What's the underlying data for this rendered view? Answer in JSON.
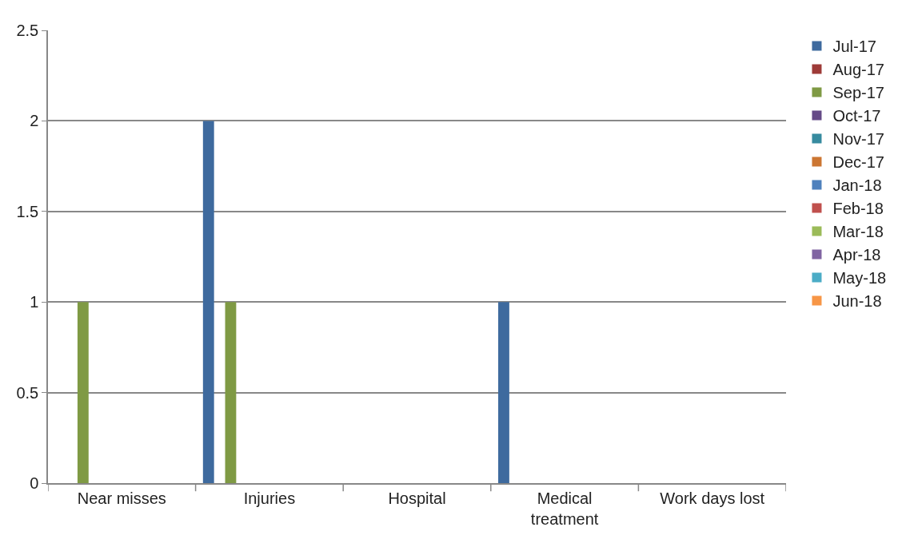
{
  "chart_data": {
    "type": "bar",
    "categories": [
      "Near misses",
      "Injuries",
      "Hospital",
      "Medical treatment",
      "Work days lost"
    ],
    "series": [
      {
        "name": "Jul-17",
        "color": "#3e6a9e",
        "values": [
          0,
          2,
          0,
          1,
          0
        ]
      },
      {
        "name": "Aug-17",
        "color": "#9e3b38",
        "values": [
          0,
          0,
          0,
          0,
          0
        ]
      },
      {
        "name": "Sep-17",
        "color": "#7f9a44",
        "values": [
          1,
          1,
          0,
          0,
          0
        ]
      },
      {
        "name": "Oct-17",
        "color": "#654a87",
        "values": [
          0,
          0,
          0,
          0,
          0
        ]
      },
      {
        "name": "Nov-17",
        "color": "#378b9f",
        "values": [
          0,
          0,
          0,
          0,
          0
        ]
      },
      {
        "name": "Dec-17",
        "color": "#cc7632",
        "values": [
          0,
          0,
          0,
          0,
          0
        ]
      },
      {
        "name": "Jan-18",
        "color": "#4f81bd",
        "values": [
          0,
          0,
          0,
          0,
          0
        ]
      },
      {
        "name": "Feb-18",
        "color": "#c0504d",
        "values": [
          0,
          0,
          0,
          0,
          0
        ]
      },
      {
        "name": "Mar-18",
        "color": "#9bbb59",
        "values": [
          0,
          0,
          0,
          0,
          0
        ]
      },
      {
        "name": "Apr-18",
        "color": "#8064a2",
        "values": [
          0,
          0,
          0,
          0,
          0
        ]
      },
      {
        "name": "May-18",
        "color": "#4bacc6",
        "values": [
          0,
          0,
          0,
          0,
          0
        ]
      },
      {
        "name": "Jun-18",
        "color": "#f79646",
        "values": [
          0,
          0,
          0,
          0,
          0
        ]
      }
    ],
    "ylim": [
      0,
      2.5
    ],
    "yticks": [
      0,
      0.5,
      1,
      1.5,
      2,
      2.5
    ],
    "grid": "y",
    "legend": "right"
  }
}
